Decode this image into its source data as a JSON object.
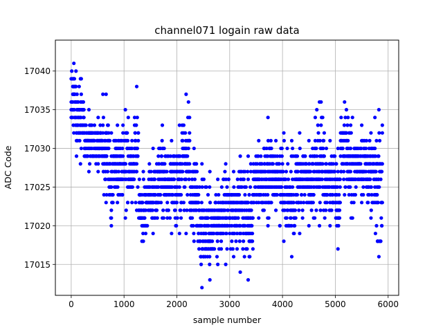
{
  "chart_data": {
    "type": "scatter",
    "title": "channel071 logain raw data",
    "xlabel": "sample number",
    "ylabel": "ADC Code",
    "xlim": [
      -300,
      6200
    ],
    "ylim": [
      17011,
      17044
    ],
    "x_ticks": [
      0,
      1000,
      2000,
      3000,
      4000,
      5000,
      6000
    ],
    "y_ticks": [
      17015,
      17020,
      17025,
      17030,
      17035,
      17040
    ],
    "grid": true,
    "marker_color": "#0000ff",
    "sample_step": 10,
    "segments": [
      {
        "x0": 0,
        "x1": 100,
        "y_range": [
          17032,
          17041
        ]
      },
      {
        "x0": 100,
        "x1": 250,
        "y_range": [
          17028,
          17039
        ]
      },
      {
        "x0": 250,
        "x1": 420,
        "y_range": [
          17027,
          17035
        ]
      },
      {
        "x0": 420,
        "x1": 600,
        "y_range": [
          17027,
          17034
        ]
      },
      {
        "x0": 600,
        "x1": 720,
        "y_range": [
          17023,
          17037
        ]
      },
      {
        "x0": 720,
        "x1": 800,
        "y_range": [
          17020,
          17032
        ]
      },
      {
        "x0": 800,
        "x1": 950,
        "y_range": [
          17023,
          17033
        ]
      },
      {
        "x0": 950,
        "x1": 1100,
        "y_range": [
          17021,
          17035
        ]
      },
      {
        "x0": 1100,
        "x1": 1200,
        "y_range": [
          17023,
          17031
        ]
      },
      {
        "x0": 1200,
        "x1": 1280,
        "y_range": [
          17022,
          17038
        ]
      },
      {
        "x0": 1280,
        "x1": 1450,
        "y_range": [
          17018,
          17027
        ]
      },
      {
        "x0": 1450,
        "x1": 1650,
        "y_range": [
          17019,
          17030
        ]
      },
      {
        "x0": 1650,
        "x1": 1800,
        "y_range": [
          17021,
          17033
        ]
      },
      {
        "x0": 1800,
        "x1": 2000,
        "y_range": [
          17019,
          17031
        ]
      },
      {
        "x0": 2000,
        "x1": 2100,
        "y_range": [
          17019,
          17033
        ]
      },
      {
        "x0": 2100,
        "x1": 2250,
        "y_range": [
          17019,
          17037
        ]
      },
      {
        "x0": 2250,
        "x1": 2400,
        "y_range": [
          17018,
          17030
        ]
      },
      {
        "x0": 2400,
        "x1": 2550,
        "y_range": [
          17012,
          17028
        ]
      },
      {
        "x0": 2550,
        "x1": 2700,
        "y_range": [
          17013,
          17027
        ]
      },
      {
        "x0": 2700,
        "x1": 2850,
        "y_range": [
          17015,
          17026
        ]
      },
      {
        "x0": 2850,
        "x1": 3000,
        "y_range": [
          17015,
          17028
        ]
      },
      {
        "x0": 3000,
        "x1": 3150,
        "y_range": [
          17016,
          17027
        ]
      },
      {
        "x0": 3150,
        "x1": 3250,
        "y_range": [
          17014,
          17029
        ]
      },
      {
        "x0": 3250,
        "x1": 3450,
        "y_range": [
          17013,
          17029
        ]
      },
      {
        "x0": 3450,
        "x1": 3650,
        "y_range": [
          17021,
          17031
        ]
      },
      {
        "x0": 3650,
        "x1": 3800,
        "y_range": [
          17020,
          17034
        ]
      },
      {
        "x0": 3800,
        "x1": 3950,
        "y_range": [
          17022,
          17031
        ]
      },
      {
        "x0": 3950,
        "x1": 4100,
        "y_range": [
          17018,
          17032
        ]
      },
      {
        "x0": 4100,
        "x1": 4250,
        "y_range": [
          17016,
          17031
        ]
      },
      {
        "x0": 4250,
        "x1": 4400,
        "y_range": [
          17019,
          17032
        ]
      },
      {
        "x0": 4400,
        "x1": 4600,
        "y_range": [
          17020,
          17031
        ]
      },
      {
        "x0": 4600,
        "x1": 4800,
        "y_range": [
          17020,
          17036
        ]
      },
      {
        "x0": 4800,
        "x1": 5000,
        "y_range": [
          17020,
          17031
        ]
      },
      {
        "x0": 5000,
        "x1": 5100,
        "y_range": [
          17017,
          17030
        ]
      },
      {
        "x0": 5100,
        "x1": 5250,
        "y_range": [
          17024,
          17036
        ]
      },
      {
        "x0": 5250,
        "x1": 5400,
        "y_range": [
          17021,
          17034
        ]
      },
      {
        "x0": 5400,
        "x1": 5600,
        "y_range": [
          17023,
          17033
        ]
      },
      {
        "x0": 5600,
        "x1": 5750,
        "y_range": [
          17021,
          17032
        ]
      },
      {
        "x0": 5750,
        "x1": 5900,
        "y_range": [
          17016,
          17035
        ]
      }
    ]
  }
}
